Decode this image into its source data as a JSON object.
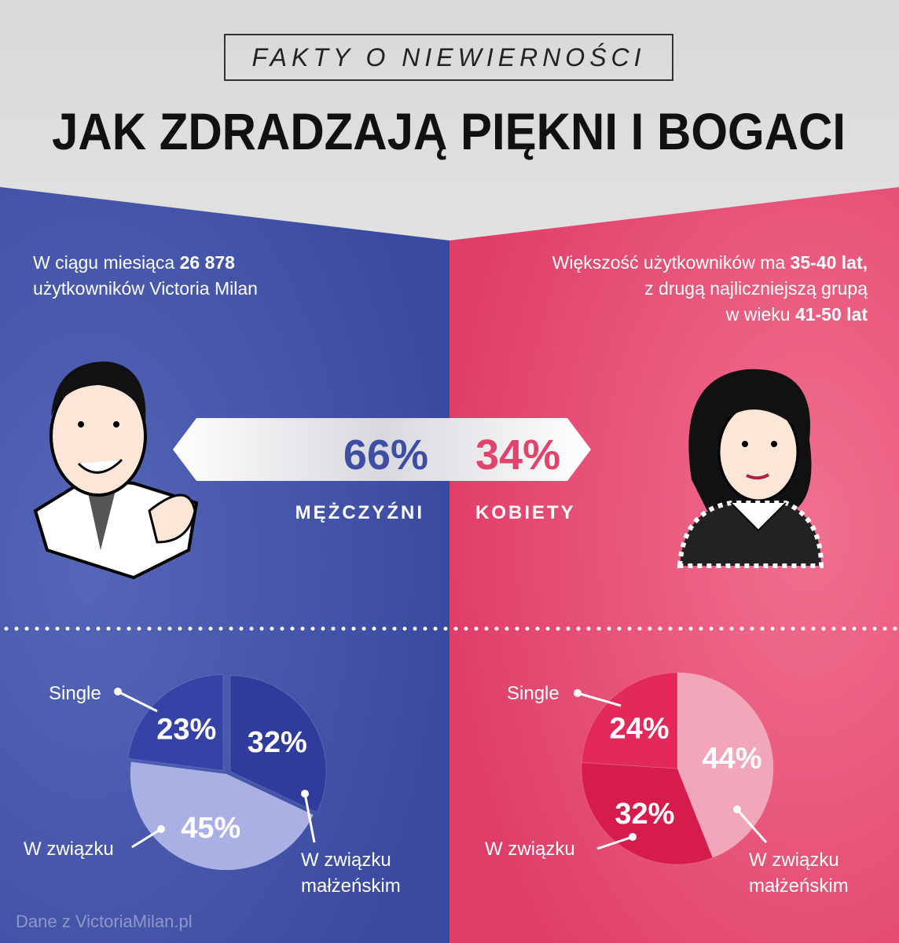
{
  "header": {
    "kicker": "FAKTY O NIEWIERNOŚCI",
    "title": "JAK ZDRADZAJĄ PIĘKNI I BOGACI"
  },
  "men_note": {
    "text_1": "W ciągu miesiąca",
    "highlight": "26 878",
    "text_2": "użytkowników Victoria Milan"
  },
  "women_note": {
    "text_1": "Większość użytkowników ma",
    "highlight_1": "35-40 lat,",
    "text_2": "z drugą najliczniejszą grupą",
    "text_3": "w wieku",
    "highlight_2": "41-50 lat"
  },
  "split": {
    "men_share": "66%",
    "men_label": "MĘŻCZYŹNI",
    "women_share": "34%",
    "women_label": "KOBIETY"
  },
  "chart_data": [
    {
      "type": "pie",
      "categories": [
        "W związku małżeńskim",
        "W związku",
        "Single"
      ],
      "values": [
        32,
        45,
        23
      ],
      "value_labels": [
        "32%",
        "45%",
        "23%"
      ],
      "colors": [
        "#2f3c9c",
        "#aab0e4",
        "#3543a6"
      ]
    },
    {
      "type": "pie",
      "categories": [
        "W związku małżeńskim",
        "W związku",
        "Single"
      ],
      "values": [
        44,
        32,
        24
      ],
      "value_labels": [
        "44%",
        "32%",
        "24%"
      ],
      "colors": [
        "#f2a6ba",
        "#d61c4d",
        "#e2295a"
      ]
    }
  ],
  "footer": "Dane z VictoriaMilan.pl"
}
